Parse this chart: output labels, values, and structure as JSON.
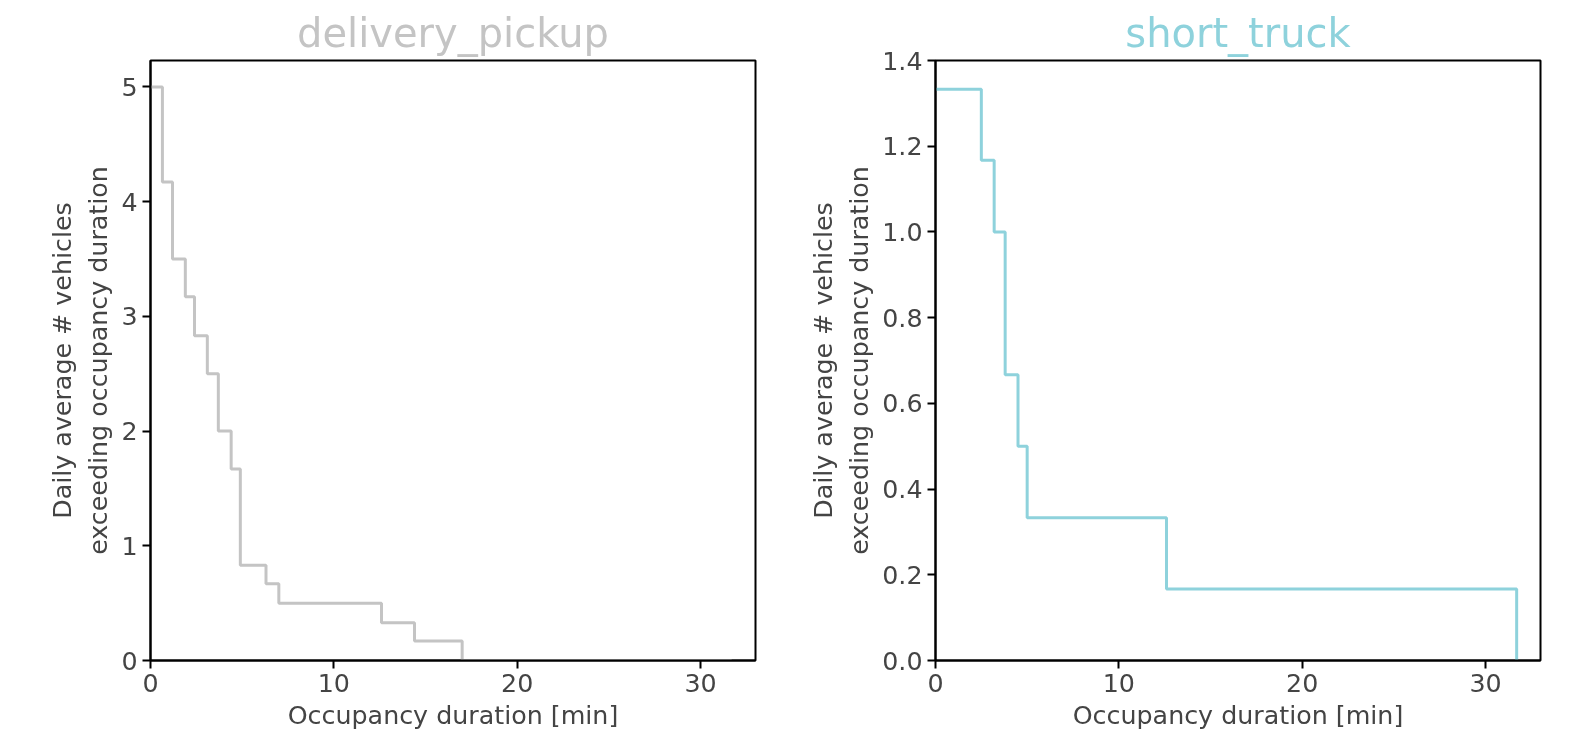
{
  "chart_data": [
    {
      "type": "step",
      "title": "delivery_pickup",
      "xlabel": "Occupancy duration [min]",
      "ylabel": "Daily average # vehicles\nexceeding occupancy duration",
      "x": [
        0,
        0.65,
        1.2,
        1.9,
        2.4,
        3.1,
        3.7,
        4.4,
        4.9,
        6.3,
        7.0,
        12.6,
        14.4,
        17.0,
        31.7
      ],
      "series": [
        {
          "color": "#c4c4c4",
          "values": [
            5,
            4.17,
            3.5,
            3.17,
            2.83,
            2.5,
            2,
            1.67,
            0.83,
            0.67,
            0.5,
            0.33,
            0.17,
            0,
            0
          ]
        }
      ],
      "xlim": [
        0,
        33
      ],
      "ylim": [
        0,
        5.23
      ],
      "xticks": [
        0,
        10,
        20,
        30
      ],
      "yticks": [
        0,
        1,
        2,
        3,
        4,
        5
      ],
      "grid": false
    },
    {
      "type": "step",
      "title": "short_truck",
      "xlabel": "Occupancy duration [min]",
      "ylabel": "Daily average # vehicles\nexceeding occupancy duration",
      "x": [
        0,
        2.5,
        3.2,
        3.8,
        4.5,
        5.0,
        12.6,
        31.7
      ],
      "series": [
        {
          "color": "#8ed2dc",
          "values": [
            1.333,
            1.167,
            1.0,
            0.667,
            0.5,
            0.333,
            0.167,
            0
          ]
        }
      ],
      "xlim": [
        0,
        33
      ],
      "ylim": [
        0,
        1.4
      ],
      "xticks": [
        0,
        10,
        20,
        30
      ],
      "yticks": [
        {
          "value": 0,
          "label": "0.0"
        },
        {
          "value": 0.2,
          "label": "0.2"
        },
        {
          "value": 0.4,
          "label": "0.4"
        },
        {
          "value": 0.6,
          "label": "0.6"
        },
        {
          "value": 0.8,
          "label": "0.8"
        },
        {
          "value": 1.0,
          "label": "1.0"
        },
        {
          "value": 1.2,
          "label": "1.2"
        },
        {
          "value": 1.4,
          "label": "1.4"
        }
      ],
      "grid": false
    }
  ]
}
